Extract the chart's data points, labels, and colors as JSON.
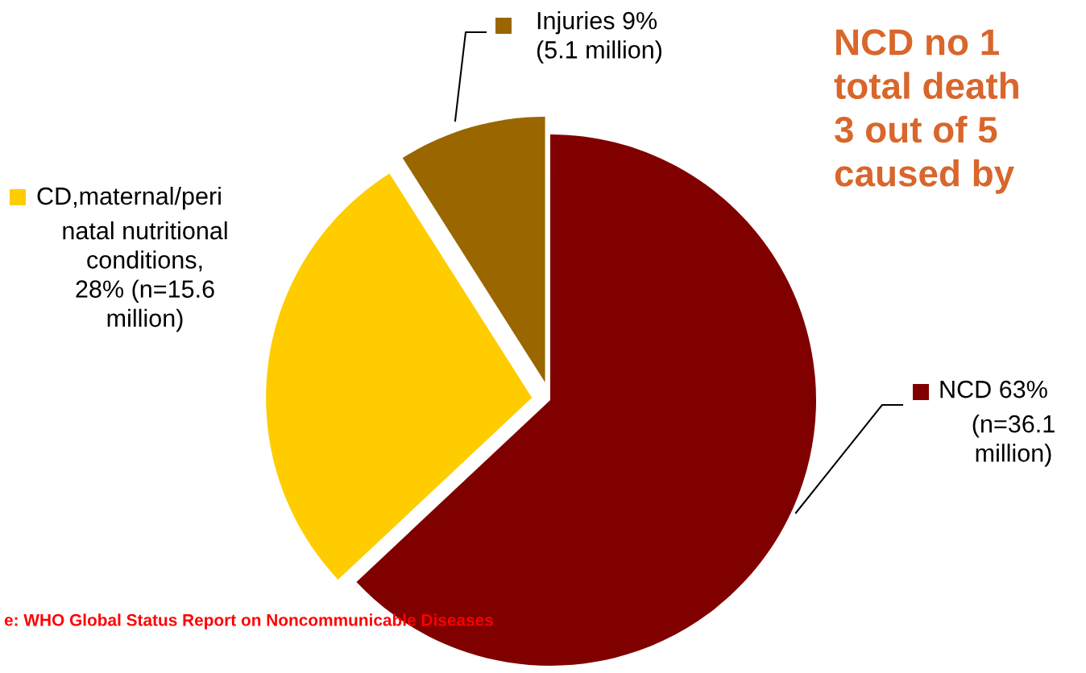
{
  "chart_data": {
    "type": "pie",
    "title": "NCD no 1\ntotal death\n3 out of 5\ncaused by",
    "categories": [
      "NCD",
      "CD,maternal/peri\nnatal nutritional\nconditions",
      "Injuries"
    ],
    "values": [
      63,
      28,
      9
    ],
    "colors": [
      "#800000",
      "#ffcc00",
      "#996600"
    ],
    "value_labels": [
      "63%\n(n=36.1\nmillion)",
      ",\n28% (n=15.6\nmillion)",
      "9%\n(5.1 million)"
    ],
    "annotations": [
      "e: WHO Global Status Report on Noncommunicable Diseases"
    ],
    "legend": "right"
  }
}
